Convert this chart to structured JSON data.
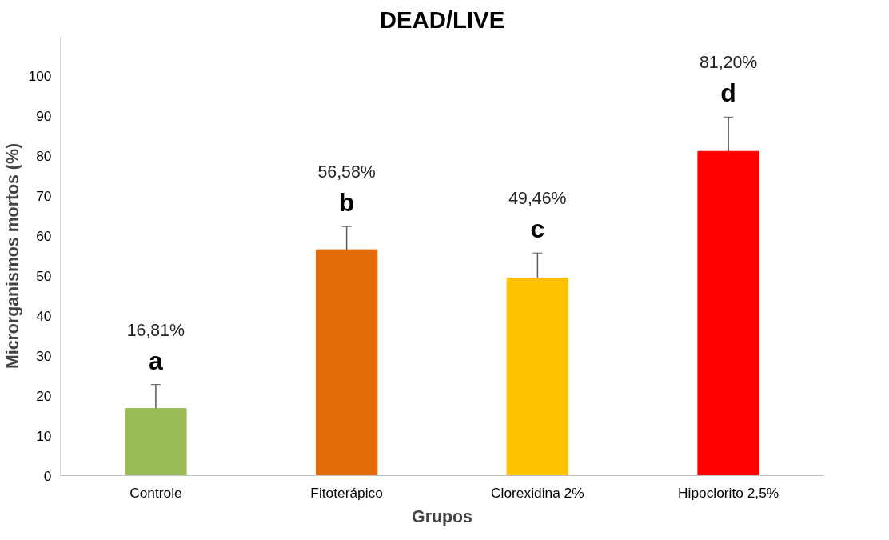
{
  "chart_data": {
    "type": "bar",
    "title": "DEAD/LIVE",
    "xlabel": "Grupos",
    "ylabel": "Microrganismos mortos (%)",
    "categories": [
      "Controle",
      "Fitoterápico",
      "Clorexidina 2%",
      "Hipoclorito 2,5%"
    ],
    "values": [
      16.81,
      56.58,
      49.46,
      81.2
    ],
    "colors": [
      "#9bbb59",
      "#e36c09",
      "#ffc000",
      "#ff0000"
    ],
    "errors": [
      6,
      5.8,
      6.3,
      8.6
    ],
    "annotations": [
      "a",
      "b",
      "c",
      "d",
      "16,81%",
      "56,58%",
      "49,46%",
      "81,20%"
    ],
    "ylim": [
      0,
      110
    ],
    "yticks": [
      0,
      10,
      20,
      30,
      40,
      50,
      60,
      70,
      80,
      90,
      100
    ],
    "grid": false
  }
}
